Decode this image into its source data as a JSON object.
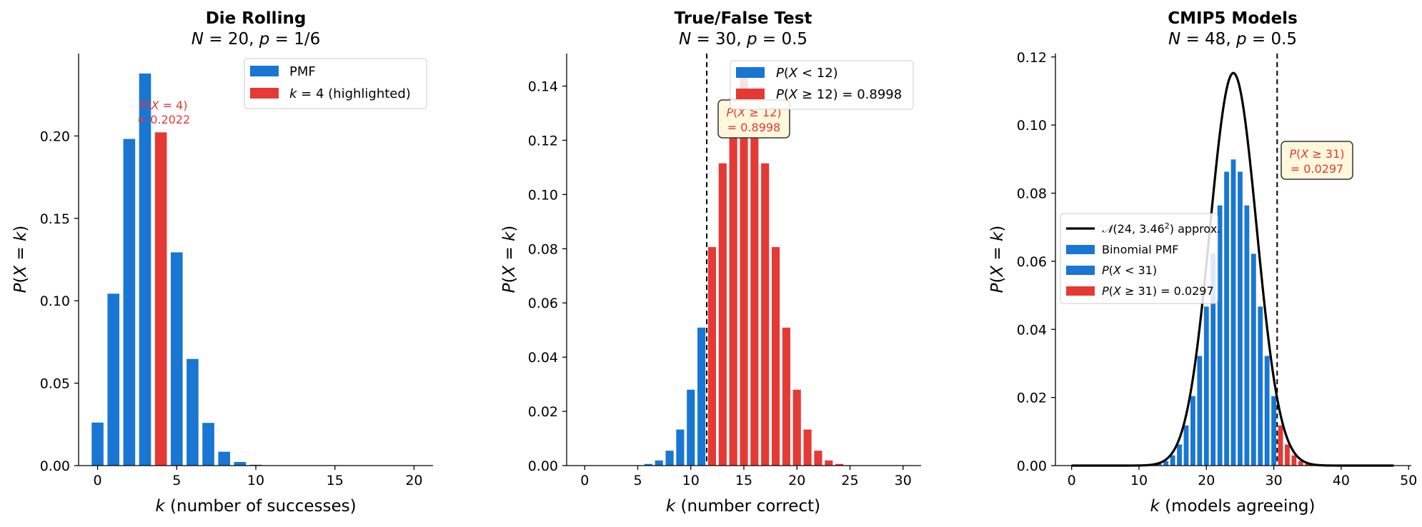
{
  "colors": {
    "blue": "#1976d2",
    "red": "#e53935",
    "curve": "#000000",
    "annot_box_fill": "#fff8dc"
  },
  "chart_data": [
    {
      "type": "bar",
      "title": "Die Rolling",
      "subtitle": "N = 20, p = 1/6",
      "xlabel": "k (number of successes)",
      "ylabel": "P(X = k)",
      "xlim": [
        -1.2,
        21.2
      ],
      "ylim": [
        0,
        0.25
      ],
      "xticks": [
        0,
        5,
        10,
        15,
        20
      ],
      "yticks": [
        0.0,
        0.05,
        0.1,
        0.15,
        0.2
      ],
      "ytick_labels": [
        "0.00",
        "0.05",
        "0.10",
        "0.15",
        "0.20"
      ],
      "legend": [
        "PMF",
        "k = 4 (highlighted)"
      ],
      "legend_position": "top-right",
      "highlight_k": 4,
      "annotation": "P(X = 4) = 0.2022",
      "x": [
        0,
        1,
        2,
        3,
        4,
        5,
        6,
        7,
        8,
        9,
        10,
        11,
        12,
        13,
        14,
        15,
        16,
        17,
        18,
        19,
        20
      ],
      "values": [
        0.0261,
        0.1043,
        0.1982,
        0.2379,
        0.2022,
        0.1294,
        0.0647,
        0.0259,
        0.0084,
        0.0022,
        0.0005,
        0.0001,
        0,
        0,
        0,
        0,
        0,
        0,
        0,
        0,
        0
      ]
    },
    {
      "type": "bar",
      "title": "True/False Test",
      "subtitle": "N = 30, p = 0.5",
      "xlabel": "k (number correct)",
      "ylabel": "P(X = k)",
      "xlim": [
        -1.7,
        31.7
      ],
      "ylim": [
        0,
        0.152
      ],
      "xticks": [
        0,
        5,
        10,
        15,
        20,
        25,
        30
      ],
      "yticks": [
        0.0,
        0.02,
        0.04,
        0.06,
        0.08,
        0.1,
        0.12,
        0.14
      ],
      "ytick_labels": [
        "0.00",
        "0.02",
        "0.04",
        "0.06",
        "0.08",
        "0.10",
        "0.12",
        "0.14"
      ],
      "legend": [
        "P(X < 12)",
        "P(X ≥ 12) = 0.8998"
      ],
      "legend_position": "top-right",
      "threshold_k": 12,
      "annotation": "P(X ≥ 12) = 0.8998",
      "x": [
        0,
        1,
        2,
        3,
        4,
        5,
        6,
        7,
        8,
        9,
        10,
        11,
        12,
        13,
        14,
        15,
        16,
        17,
        18,
        19,
        20,
        21,
        22,
        23,
        24,
        25,
        26,
        27,
        28,
        29,
        30
      ],
      "values": [
        0,
        0,
        0,
        0,
        0,
        0,
        0.0006,
        0.0019,
        0.0055,
        0.0133,
        0.028,
        0.0509,
        0.0806,
        0.1115,
        0.1354,
        0.1445,
        0.1354,
        0.1115,
        0.0806,
        0.0509,
        0.028,
        0.0133,
        0.0055,
        0.0019,
        0.0006,
        0.0001,
        0,
        0,
        0,
        0,
        0
      ]
    },
    {
      "type": "bar",
      "title": "CMIP5 Models",
      "subtitle": "N = 48, p = 0.5",
      "xlabel": "k (models agreeing)",
      "ylabel": "P(X = k)",
      "xlim": [
        -2.4,
        50.4
      ],
      "ylim": [
        0,
        0.121
      ],
      "xticks": [
        0,
        10,
        20,
        30,
        40,
        50
      ],
      "yticks": [
        0.0,
        0.02,
        0.04,
        0.06,
        0.08,
        0.1,
        0.12
      ],
      "ytick_labels": [
        "0.00",
        "0.02",
        "0.04",
        "0.06",
        "0.08",
        "0.10",
        "0.12"
      ],
      "legend": [
        "𝒩(24, 3.46²) approx.",
        "Binomial PMF",
        "P(X < 31)",
        "P(X ≥ 31) = 0.0297"
      ],
      "legend_position": "center-left",
      "threshold_k": 31,
      "annotation": "P(X ≥ 31) = 0.0297",
      "normal_mean": 24,
      "normal_sd": 3.46,
      "x": [
        0,
        1,
        2,
        3,
        4,
        5,
        6,
        7,
        8,
        9,
        10,
        11,
        12,
        13,
        14,
        15,
        16,
        17,
        18,
        19,
        20,
        21,
        22,
        23,
        24,
        25,
        26,
        27,
        28,
        29,
        30,
        31,
        32,
        33,
        34,
        35,
        36,
        37,
        38,
        39,
        40,
        41,
        42,
        43,
        44,
        45,
        46,
        47,
        48
      ],
      "values": [
        0,
        0,
        0,
        0,
        0,
        0,
        0,
        0,
        0,
        0,
        0,
        0,
        0.0002,
        0.0005,
        0.0013,
        0.003,
        0.0062,
        0.0118,
        0.0204,
        0.0322,
        0.0467,
        0.0622,
        0.0764,
        0.0863,
        0.0899,
        0.0863,
        0.0764,
        0.0622,
        0.0467,
        0.0322,
        0.0204,
        0.0118,
        0.0062,
        0.003,
        0.0013,
        0.0005,
        0.0002,
        0,
        0,
        0,
        0,
        0,
        0,
        0,
        0,
        0,
        0,
        0,
        0
      ]
    }
  ]
}
